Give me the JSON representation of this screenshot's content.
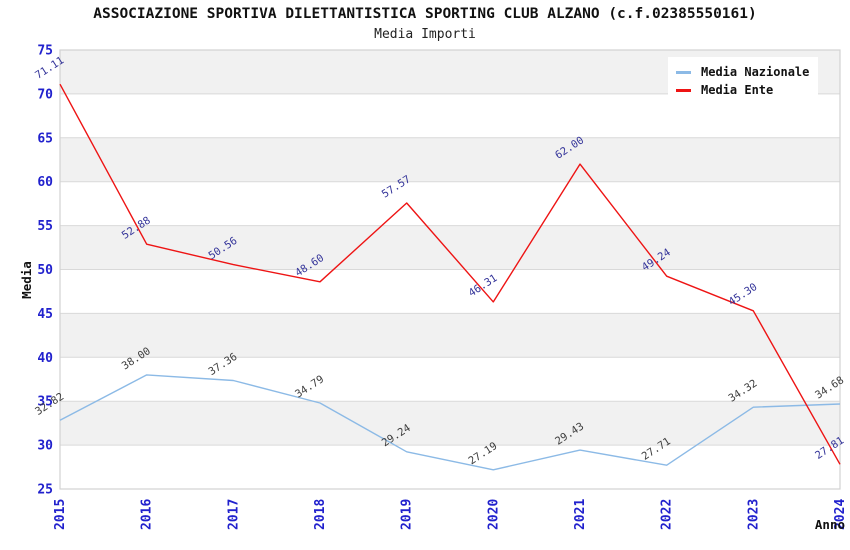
{
  "chart_data": {
    "type": "line",
    "title": "ASSOCIAZIONE SPORTIVA DILETTANTISTICA SPORTING CLUB ALZANO (c.f.02385550161)",
    "subtitle": "Media Importi",
    "xlabel": "Anno",
    "ylabel": "Media",
    "x": [
      "2015",
      "2016",
      "2017",
      "2018",
      "2019",
      "2020",
      "2021",
      "2022",
      "2023",
      "2024"
    ],
    "ylim": [
      25,
      75
    ],
    "ytick_step": 5,
    "grid": true,
    "legend_position": "top-right",
    "band_fill": "#f1f1f1",
    "gridline_color": "#d9d9d9",
    "frame_color": "#d2d2d2",
    "axis_tick_color": "#2121cd",
    "axis_title_color": "#111111",
    "series": [
      {
        "name": "Media Nazionale",
        "color": "#8cbae6",
        "label_color": "#3d3d3d",
        "values": [
          32.82,
          38.0,
          37.36,
          34.79,
          29.24,
          27.19,
          29.43,
          27.71,
          34.32,
          34.68
        ],
        "labels": [
          "32.82",
          "38.00",
          "37.36",
          "34.79",
          "29.24",
          "27.19",
          "29.43",
          "27.71",
          "34.32",
          "34.68"
        ]
      },
      {
        "name": "Media Ente",
        "color": "#ee1414",
        "label_color": "#333399",
        "values": [
          71.11,
          52.88,
          50.56,
          48.6,
          57.57,
          46.31,
          62.0,
          49.24,
          45.3,
          27.81
        ],
        "labels": [
          "71.11",
          "52.88",
          "50.56",
          "48.60",
          "57.57",
          "46.31",
          "62.00",
          "49.24",
          "45.30",
          "27.81"
        ]
      }
    ]
  }
}
